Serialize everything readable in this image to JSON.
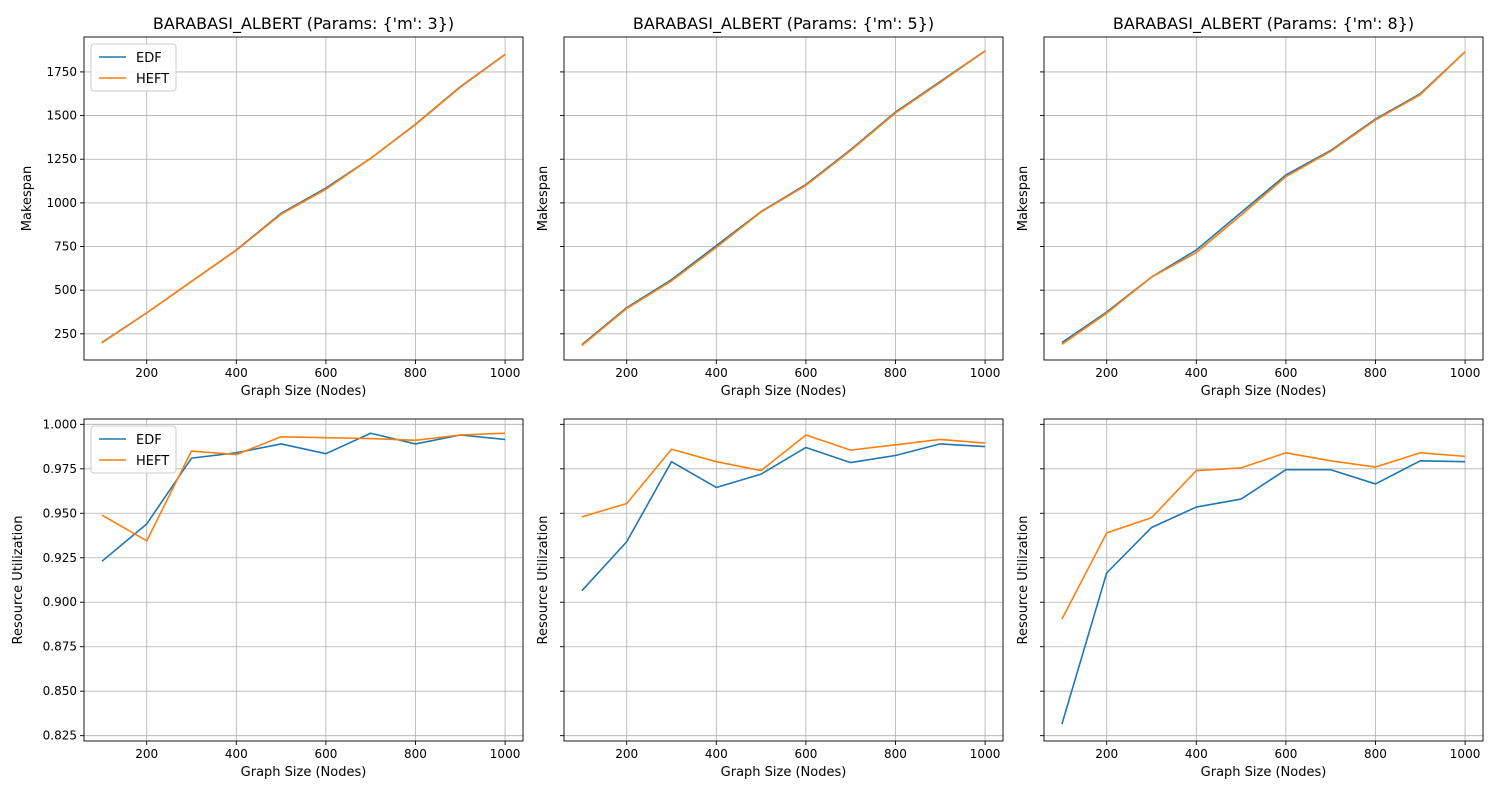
{
  "colors": {
    "edf": "#1f77b4",
    "heft": "#ff7f0e",
    "grid": "#b0b0b0",
    "frame": "#000000"
  },
  "chart_data": [
    {
      "type": "line",
      "title": "BARABASI_ALBERT (Params: {'m': 3})",
      "xlabel": "Graph Size (Nodes)",
      "ylabel": "Makespan",
      "x": [
        100,
        200,
        300,
        400,
        500,
        600,
        700,
        800,
        900,
        1000
      ],
      "xlim": [
        60,
        1040
      ],
      "ylim": [
        100,
        1950
      ],
      "xticks": [
        200,
        400,
        600,
        800,
        1000
      ],
      "yticks": [
        250,
        500,
        750,
        1000,
        1250,
        1500,
        1750
      ],
      "show_ytick_labels": true,
      "legend": "top-left",
      "grid": true,
      "series": [
        {
          "name": "EDF",
          "values": [
            200,
            370,
            550,
            730,
            940,
            1085,
            1255,
            1450,
            1665,
            1850
          ]
        },
        {
          "name": "HEFT",
          "values": [
            198,
            370,
            550,
            728,
            935,
            1078,
            1255,
            1448,
            1662,
            1850
          ]
        }
      ]
    },
    {
      "type": "line",
      "title": "BARABASI_ALBERT (Params: {'m': 5})",
      "xlabel": "Graph Size (Nodes)",
      "ylabel": "Makespan",
      "x": [
        100,
        200,
        300,
        400,
        500,
        600,
        700,
        800,
        900,
        1000
      ],
      "xlim": [
        60,
        1040
      ],
      "ylim": [
        100,
        1950
      ],
      "xticks": [
        200,
        400,
        600,
        800,
        1000
      ],
      "yticks": [
        250,
        500,
        750,
        1000,
        1250,
        1500,
        1750
      ],
      "show_ytick_labels": false,
      "legend": "none",
      "grid": true,
      "series": [
        {
          "name": "EDF",
          "values": [
            188,
            400,
            560,
            755,
            950,
            1105,
            1305,
            1520,
            1695,
            1870
          ]
        },
        {
          "name": "HEFT",
          "values": [
            183,
            395,
            553,
            745,
            948,
            1100,
            1300,
            1515,
            1690,
            1870
          ]
        }
      ]
    },
    {
      "type": "line",
      "title": "BARABASI_ALBERT (Params: {'m': 8})",
      "xlabel": "Graph Size (Nodes)",
      "ylabel": "Makespan",
      "x": [
        100,
        200,
        300,
        400,
        500,
        600,
        700,
        800,
        900,
        1000
      ],
      "xlim": [
        60,
        1040
      ],
      "ylim": [
        100,
        1950
      ],
      "xticks": [
        200,
        400,
        600,
        800,
        1000
      ],
      "yticks": [
        250,
        500,
        750,
        1000,
        1250,
        1500,
        1750
      ],
      "show_ytick_labels": false,
      "legend": "none",
      "grid": true,
      "series": [
        {
          "name": "EDF",
          "values": [
            200,
            375,
            575,
            730,
            945,
            1160,
            1300,
            1480,
            1625,
            1865
          ]
        },
        {
          "name": "HEFT",
          "values": [
            190,
            368,
            575,
            715,
            930,
            1150,
            1295,
            1475,
            1620,
            1865
          ]
        }
      ]
    },
    {
      "type": "line",
      "title": "",
      "xlabel": "Graph Size (Nodes)",
      "ylabel": "Resource Utilization",
      "x": [
        100,
        200,
        300,
        400,
        500,
        600,
        700,
        800,
        900,
        1000
      ],
      "xlim": [
        60,
        1040
      ],
      "ylim": [
        0.822,
        1.003
      ],
      "xticks": [
        200,
        400,
        600,
        800,
        1000
      ],
      "yticks": [
        0.825,
        0.85,
        0.875,
        0.9,
        0.925,
        0.95,
        0.975,
        1.0
      ],
      "ytick_labels": [
        "0.825",
        "0.850",
        "0.875",
        "0.900",
        "0.925",
        "0.950",
        "0.975",
        "1.000"
      ],
      "show_ytick_labels": true,
      "legend": "top-left",
      "grid": true,
      "series": [
        {
          "name": "EDF",
          "values": [
            0.923,
            0.944,
            0.981,
            0.984,
            0.989,
            0.9835,
            0.995,
            0.989,
            0.994,
            0.9915
          ]
        },
        {
          "name": "HEFT",
          "values": [
            0.949,
            0.9345,
            0.985,
            0.983,
            0.993,
            0.9925,
            0.992,
            0.991,
            0.994,
            0.995
          ]
        }
      ]
    },
    {
      "type": "line",
      "title": "",
      "xlabel": "Graph Size (Nodes)",
      "ylabel": "Resource Utilization",
      "x": [
        100,
        200,
        300,
        400,
        500,
        600,
        700,
        800,
        900,
        1000
      ],
      "xlim": [
        60,
        1040
      ],
      "ylim": [
        0.822,
        1.003
      ],
      "xticks": [
        200,
        400,
        600,
        800,
        1000
      ],
      "yticks": [
        0.825,
        0.85,
        0.875,
        0.9,
        0.925,
        0.95,
        0.975,
        1.0
      ],
      "show_ytick_labels": false,
      "legend": "none",
      "grid": true,
      "series": [
        {
          "name": "EDF",
          "values": [
            0.9065,
            0.934,
            0.979,
            0.9645,
            0.972,
            0.987,
            0.9785,
            0.9825,
            0.989,
            0.9875
          ]
        },
        {
          "name": "HEFT",
          "values": [
            0.948,
            0.9555,
            0.986,
            0.979,
            0.974,
            0.994,
            0.9855,
            0.9885,
            0.9915,
            0.9895
          ]
        }
      ]
    },
    {
      "type": "line",
      "title": "",
      "xlabel": "Graph Size (Nodes)",
      "ylabel": "Resource Utilization",
      "x": [
        100,
        200,
        300,
        400,
        500,
        600,
        700,
        800,
        900,
        1000
      ],
      "xlim": [
        60,
        1040
      ],
      "ylim": [
        0.822,
        1.003
      ],
      "xticks": [
        200,
        400,
        600,
        800,
        1000
      ],
      "yticks": [
        0.825,
        0.85,
        0.875,
        0.9,
        0.925,
        0.95,
        0.975,
        1.0
      ],
      "show_ytick_labels": false,
      "legend": "none",
      "grid": true,
      "series": [
        {
          "name": "EDF",
          "values": [
            0.8315,
            0.9165,
            0.942,
            0.9535,
            0.958,
            0.9745,
            0.9745,
            0.9665,
            0.9795,
            0.979
          ]
        },
        {
          "name": "HEFT",
          "values": [
            0.8905,
            0.939,
            0.9475,
            0.974,
            0.9755,
            0.984,
            0.9795,
            0.976,
            0.984,
            0.982
          ]
        }
      ]
    }
  ]
}
